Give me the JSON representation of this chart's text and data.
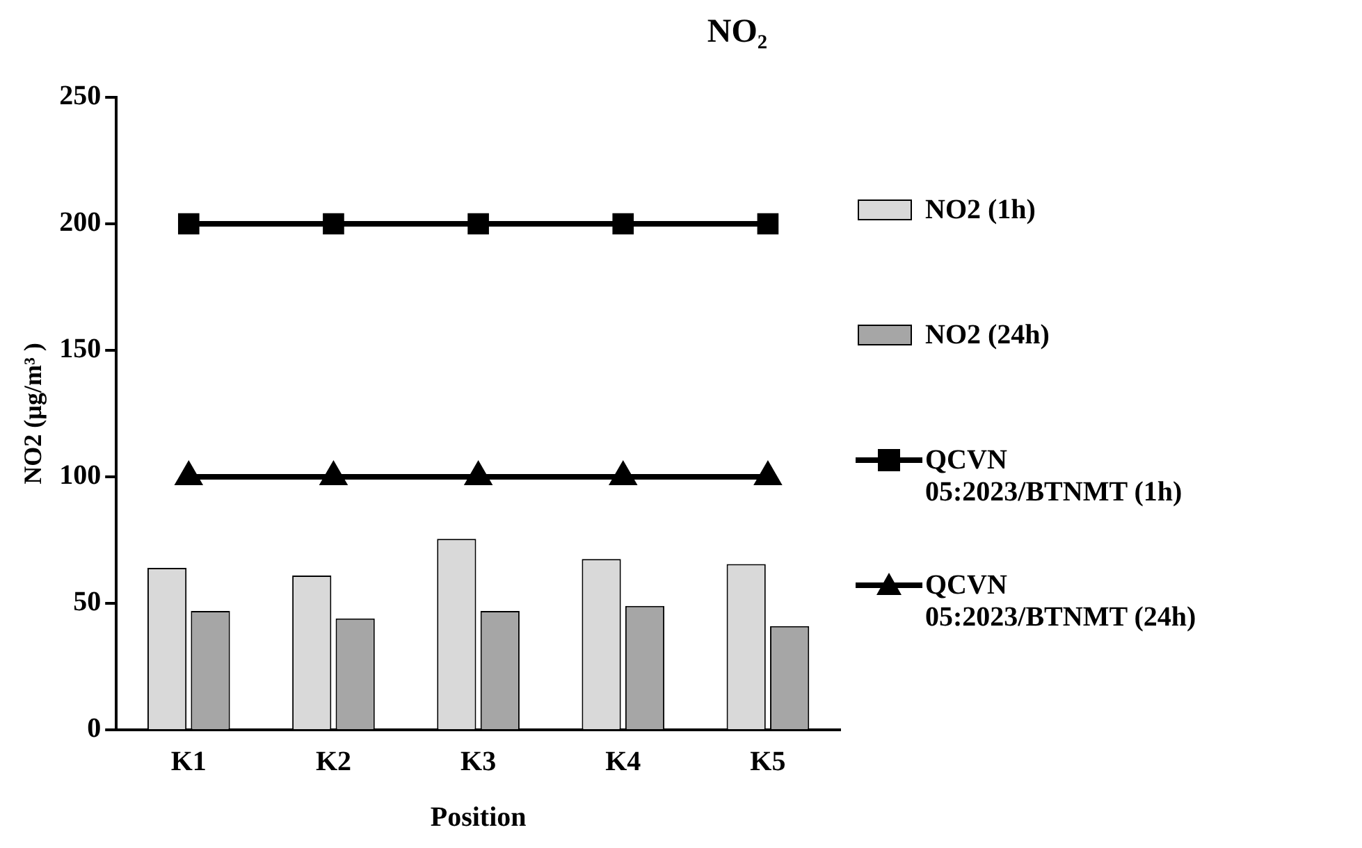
{
  "chart_data": {
    "type": "bar",
    "title": "NO₂",
    "xlabel": "Position",
    "ylabel": "NO2 (µg/m³ )",
    "categories": [
      "K1",
      "K2",
      "K3",
      "K4",
      "K5"
    ],
    "series": [
      {
        "name": "NO2 (1h)",
        "color": "#d9d9d9",
        "values": [
          64,
          61,
          75.5,
          67.5,
          65.5
        ]
      },
      {
        "name": "NO2 (24h)",
        "color": "#a6a6a6",
        "values": [
          47,
          44,
          47,
          49,
          41
        ]
      },
      {
        "name": "QCVN 05:2023/BTNMT (1h)",
        "type": "line",
        "color": "#000000",
        "marker": "square",
        "values": [
          200,
          200,
          200,
          200,
          200
        ]
      },
      {
        "name": "QCVN 05:2023/BTNMT (24h)",
        "type": "line",
        "color": "#000000",
        "marker": "triangle",
        "values": [
          100,
          100,
          100,
          100,
          100
        ]
      }
    ],
    "ylim": [
      0,
      250
    ],
    "yticks": [
      0,
      50,
      100,
      150,
      200,
      250
    ],
    "grid": false,
    "legend": "right"
  }
}
